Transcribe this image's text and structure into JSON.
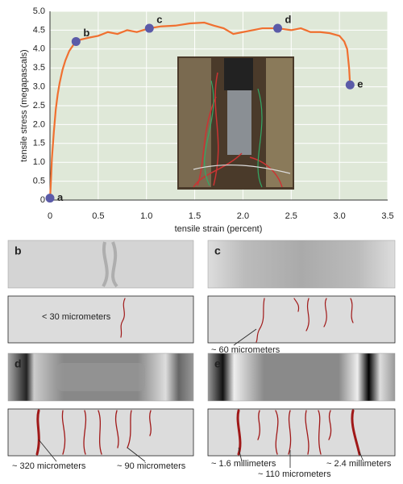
{
  "chart_data": {
    "type": "line",
    "x_label": "tensile strain (percent)",
    "y_label": "tensile stress (megapascals)",
    "x": [
      0,
      0.01,
      0.02,
      0.04,
      0.06,
      0.08,
      0.1,
      0.13,
      0.16,
      0.2,
      0.24,
      0.27,
      0.32,
      0.4,
      0.5,
      0.6,
      0.7,
      0.8,
      0.9,
      1.03,
      1.15,
      1.3,
      1.45,
      1.6,
      1.7,
      1.8,
      1.9,
      2.0,
      2.1,
      2.2,
      2.36,
      2.5,
      2.6,
      2.7,
      2.8,
      2.9,
      3.0,
      3.05,
      3.08,
      3.1,
      3.11
    ],
    "values": [
      0,
      0.5,
      1.1,
      1.8,
      2.4,
      2.8,
      3.1,
      3.45,
      3.7,
      3.95,
      4.1,
      4.2,
      4.25,
      4.3,
      4.35,
      4.45,
      4.4,
      4.5,
      4.45,
      4.55,
      4.6,
      4.62,
      4.68,
      4.7,
      4.62,
      4.55,
      4.4,
      4.45,
      4.5,
      4.55,
      4.55,
      4.5,
      4.55,
      4.45,
      4.45,
      4.42,
      4.35,
      4.2,
      4.0,
      3.5,
      3.05
    ],
    "color": "#f07030",
    "points": [
      {
        "label": "a",
        "x": 0,
        "y": 0.05
      },
      {
        "label": "b",
        "x": 0.27,
        "y": 4.2
      },
      {
        "label": "c",
        "x": 1.03,
        "y": 4.55
      },
      {
        "label": "d",
        "x": 2.36,
        "y": 4.55
      },
      {
        "label": "e",
        "x": 3.11,
        "y": 3.05
      }
    ],
    "point_color": "#5b5ba8",
    "xlim": [
      0,
      3.5
    ],
    "ylim": [
      0,
      5
    ],
    "xticks": [
      0,
      0.5,
      {
        "value": 1,
        "label": "1.0"
      },
      1.5,
      {
        "value": 2,
        "label": "2.0"
      },
      2.5,
      {
        "value": 3,
        "label": "3.0"
      },
      3.5
    ],
    "yticks": [
      0,
      0.5,
      {
        "value": 1,
        "label": "1.0"
      },
      1.5,
      {
        "value": 2,
        "label": "2.0"
      },
      2.5,
      {
        "value": 3,
        "label": "3.0"
      },
      3.5,
      {
        "value": 4,
        "label": "4.0"
      },
      4.5,
      {
        "value": 5,
        "label": "5.0"
      }
    ],
    "grid": true
  },
  "panels": [
    {
      "label": "b",
      "notes": [
        "< 30 micrometers"
      ]
    },
    {
      "label": "c",
      "notes": [
        "~ 60 micrometers"
      ]
    },
    {
      "label": "d",
      "notes": [
        "~ 320 micrometers",
        "~ 90 micrometers"
      ]
    },
    {
      "label": "e",
      "notes": [
        "~ 1.6 millimeters",
        "~ 110 micrometers",
        "~ 2.4 millimeters"
      ]
    }
  ]
}
